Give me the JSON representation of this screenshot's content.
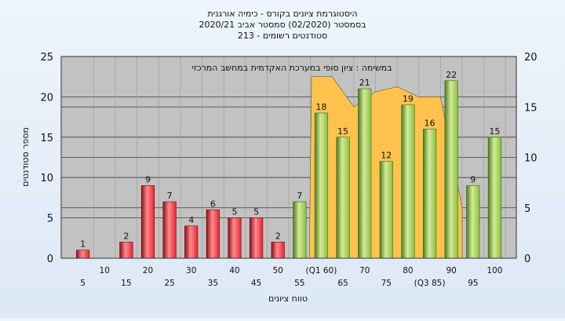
{
  "chart_data": {
    "type": "bar",
    "title_lines": [
      "היסטוגרמת ציונים בקורס - כימיה אורגנית",
      "בסמסטר  (02/2020)  סמסטר אביב 2020/21",
      "סטודנטים רשומים - 213"
    ],
    "annotation": "במשימה : ציון סופי במערכת האקדמית במחשב המרכזי",
    "xlabel": "טווח ציונים",
    "ylabel": "מספר סטודנטים",
    "categories": [
      "5",
      "10",
      "15",
      "20",
      "25",
      "30",
      "35",
      "40",
      "45",
      "50",
      "55",
      "(Q1 60)",
      "65",
      "70",
      "75",
      "80",
      "(Q3 85)",
      "90",
      "95",
      "100"
    ],
    "values": [
      1,
      0,
      2,
      9,
      7,
      4,
      6,
      5,
      5,
      2,
      7,
      18,
      15,
      21,
      12,
      19,
      16,
      22,
      9,
      15
    ],
    "data_labels": [
      "1",
      "",
      "2",
      "9",
      "7",
      "4",
      "6",
      "5",
      "5",
      "2",
      "7",
      "18",
      "15",
      "21",
      "12",
      "19",
      "16",
      "22",
      "9",
      "15"
    ],
    "ylim": [
      0,
      25
    ],
    "yticks": [
      "0",
      "5",
      "10",
      "15",
      "20",
      "25"
    ],
    "y2lim": [
      0,
      20
    ],
    "y2ticks": [
      "0",
      "5",
      "10",
      "15",
      "20"
    ],
    "fail_threshold": 55,
    "colors": {
      "fail": "#e8242c",
      "pass": "#8cbf3f",
      "area": "#ffc34d",
      "plot_bg": "#c2c2c2"
    },
    "area_series": {
      "y2_values": [
        18,
        18,
        15,
        16.5,
        17,
        16,
        16,
        5
      ]
    },
    "grid": true,
    "legend": "none"
  }
}
